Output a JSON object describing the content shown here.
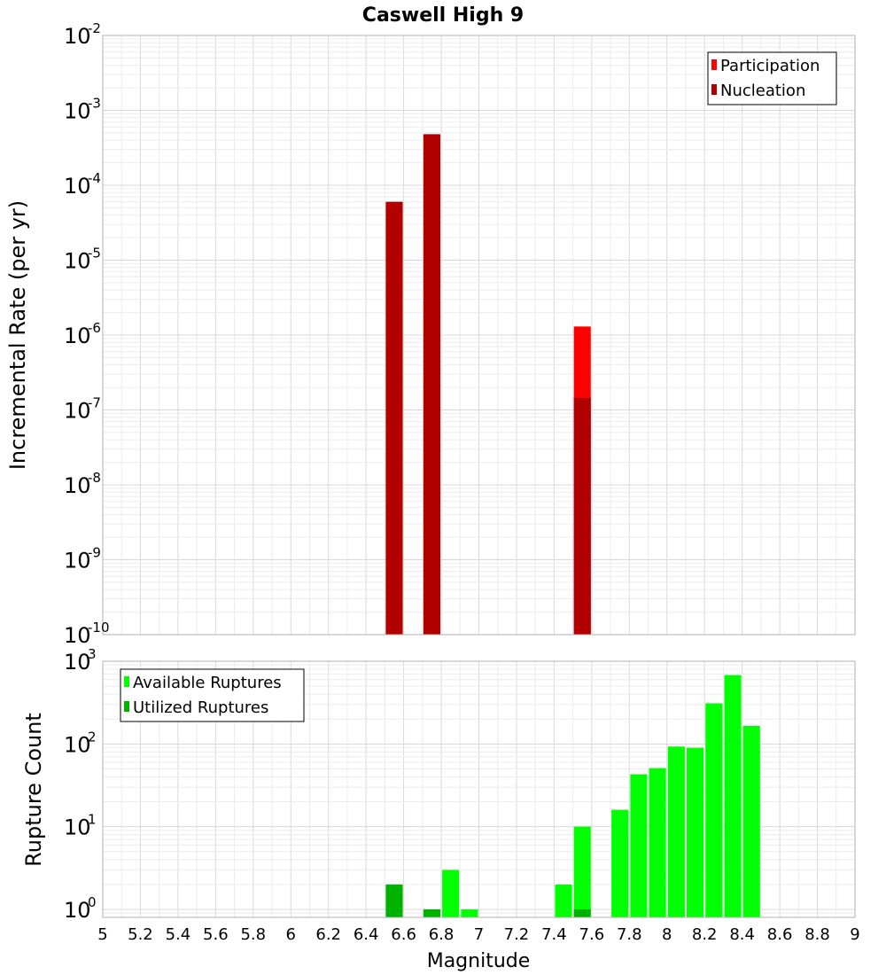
{
  "chart_data": [
    {
      "type": "bar",
      "title": "Caswell High 9",
      "xlabel": "",
      "ylabel": "Incremental Rate (per yr)",
      "xlim": [
        5,
        9
      ],
      "ylim": [
        1e-10,
        0.01
      ],
      "yscale": "log",
      "yticks": [
        {
          "base": "10",
          "exp": "-10"
        },
        {
          "base": "10",
          "exp": "-9"
        },
        {
          "base": "10",
          "exp": "-8"
        },
        {
          "base": "10",
          "exp": "-7"
        },
        {
          "base": "10",
          "exp": "-6"
        },
        {
          "base": "10",
          "exp": "-5"
        },
        {
          "base": "10",
          "exp": "-4"
        },
        {
          "base": "10",
          "exp": "-3"
        },
        {
          "base": "10",
          "exp": "-2"
        }
      ],
      "bar_width": 0.09,
      "grid": true,
      "legend_position": "top-right",
      "series": [
        {
          "name": "Participation",
          "color": "#ff0000",
          "x": [
            6.55,
            6.75,
            7.55
          ],
          "values": [
            6e-05,
            0.00048,
            1.3e-06
          ]
        },
        {
          "name": "Nucleation",
          "color": "#b20000",
          "x": [
            6.55,
            6.75,
            7.55
          ],
          "values": [
            6e-05,
            0.00048,
            1.45e-07
          ]
        }
      ]
    },
    {
      "type": "bar",
      "title": "",
      "xlabel": "Magnitude",
      "ylabel": "Rupture Count",
      "xlim": [
        5,
        9
      ],
      "ylim": [
        0.8,
        1000
      ],
      "yscale": "log",
      "yticks": [
        {
          "base": "10",
          "exp": "0"
        },
        {
          "base": "10",
          "exp": "1"
        },
        {
          "base": "10",
          "exp": "2"
        },
        {
          "base": "10",
          "exp": "3"
        }
      ],
      "xticks": [
        "5",
        "5.2",
        "5.4",
        "5.6",
        "5.8",
        "6",
        "6.2",
        "6.4",
        "6.6",
        "6.8",
        "7",
        "7.2",
        "7.4",
        "7.6",
        "7.8",
        "8",
        "8.2",
        "8.4",
        "8.6",
        "8.8",
        "9"
      ],
      "bar_width": 0.09,
      "grid": true,
      "legend_position": "top-left",
      "series": [
        {
          "name": "Available Ruptures",
          "color": "#00ff00",
          "x": [
            6.55,
            6.75,
            6.85,
            6.95,
            7.45,
            7.55,
            7.75,
            7.85,
            7.95,
            8.05,
            8.15,
            8.25,
            8.35,
            8.45
          ],
          "values": [
            2,
            1,
            3,
            1,
            2,
            10,
            16,
            43,
            51,
            93,
            90,
            310,
            680,
            165
          ]
        },
        {
          "name": "Utilized Ruptures",
          "color": "#00b200",
          "x": [
            6.55,
            6.75,
            7.55
          ],
          "values": [
            2,
            1,
            1
          ]
        }
      ]
    }
  ]
}
